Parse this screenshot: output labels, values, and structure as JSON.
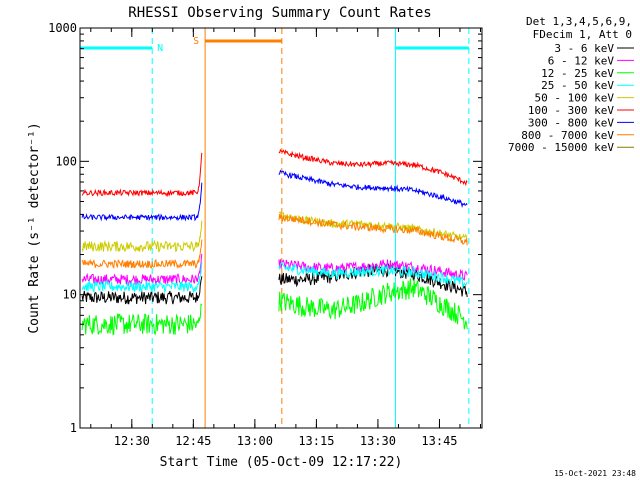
{
  "chart_data": {
    "type": "line",
    "title": "RHESSI Observing Summary Count Rates",
    "xlabel": "Start Time (05-Oct-09 12:17:22)",
    "ylabel": "Count Rate (s⁻¹ detector⁻¹)",
    "yscale": "log",
    "ylim": [
      1,
      1000
    ],
    "xlim_minutes_after_start": [
      0,
      98
    ],
    "y_ticks": [
      "1",
      "10",
      "100",
      "1000"
    ],
    "x_ticks": [
      {
        "label": "12:30",
        "minute": 12.63
      },
      {
        "label": "12:45",
        "minute": 27.63
      },
      {
        "label": "13:00",
        "minute": 42.63
      },
      {
        "label": "13:15",
        "minute": 57.63
      },
      {
        "label": "13:30",
        "minute": 72.63
      },
      {
        "label": "13:45",
        "minute": 87.63
      }
    ],
    "legend_header": [
      "Det 1,3,4,5,6,9,",
      "FDecim 1, Att 0"
    ],
    "legend_position": "right",
    "series": [
      {
        "name": "3 - 6 keV",
        "color": "#000000",
        "pre_level": 9.5,
        "pre_noise": 0.05,
        "post_level": 13,
        "post_noise": 0.05,
        "post_shape": [
          1.0,
          1.0,
          1.05,
          1.15,
          1.18,
          1.1,
          0.95,
          0.8
        ]
      },
      {
        "name": "6 - 12 keV",
        "color": "#ff00ff",
        "pre_level": 13,
        "pre_noise": 0.04,
        "post_level": 17,
        "post_noise": 0.04,
        "post_shape": [
          1.0,
          0.95,
          0.92,
          0.95,
          1.0,
          0.95,
          0.88,
          0.8
        ]
      },
      {
        "name": "12 - 25 keV",
        "color": "#00ff00",
        "pre_level": 6,
        "pre_noise": 0.08,
        "post_level": 9,
        "post_noise": 0.08,
        "post_shape": [
          1.0,
          0.9,
          0.85,
          0.95,
          1.15,
          1.25,
          0.95,
          0.7
        ]
      },
      {
        "name": "25 - 50 keV",
        "color": "#00ffff",
        "pre_level": 11.5,
        "pre_noise": 0.04,
        "post_level": 16,
        "post_noise": 0.04,
        "post_shape": [
          1.0,
          0.95,
          0.9,
          0.93,
          0.95,
          0.92,
          0.85,
          0.75
        ]
      },
      {
        "name": "50 - 100 keV",
        "color": "#cccc00",
        "pre_level": 23,
        "pre_noise": 0.04,
        "post_level": 40,
        "post_noise": 0.03,
        "post_shape": [
          1.0,
          0.9,
          0.85,
          0.85,
          0.82,
          0.78,
          0.72,
          0.65
        ]
      },
      {
        "name": "100 - 300 keV",
        "color": "#ff0000",
        "pre_level": 58,
        "pre_noise": 0.02,
        "post_level": 118,
        "post_noise": 0.02,
        "post_shape": [
          1.0,
          0.9,
          0.82,
          0.8,
          0.82,
          0.8,
          0.7,
          0.58
        ]
      },
      {
        "name": "300 - 800 keV",
        "color": "#0000ff",
        "pre_level": 38,
        "pre_noise": 0.02,
        "post_level": 82,
        "post_noise": 0.02,
        "post_shape": [
          1.0,
          0.9,
          0.82,
          0.78,
          0.77,
          0.74,
          0.66,
          0.57
        ]
      },
      {
        "name": "800 - 7000 keV",
        "color": "#ff7f00",
        "pre_level": 17,
        "pre_noise": 0.03,
        "post_level": 38,
        "post_noise": 0.03,
        "post_shape": [
          1.0,
          0.95,
          0.88,
          0.85,
          0.82,
          0.8,
          0.72,
          0.65
        ]
      },
      {
        "name": "7000 - 15000 keV",
        "color": "#808000",
        "pre_level": null,
        "pre_noise": 0,
        "post_level": null,
        "post_noise": 0,
        "post_shape": []
      }
    ],
    "flare_rise_minutes": [
      28.5,
      29.8
    ],
    "data_gap_minutes": [
      30.2,
      48.5
    ],
    "post_start_minute": 48.5,
    "data_end_minute": 94.5,
    "annotations": [
      {
        "label": "N",
        "color": "#00ffff",
        "type": "night",
        "start_minute": 0,
        "end_minute": 17.6
      },
      {
        "label": "",
        "color": "#00ffff",
        "type": "night",
        "start_minute": 76.9,
        "end_minute": 94.8
      },
      {
        "label": "S",
        "color": "#ff7f00",
        "type": "saa",
        "start_minute": 30.5,
        "end_minute": 49.2
      }
    ],
    "vertical_lines": [
      {
        "minute": 17.6,
        "color": "#00ffff",
        "style": "dashed"
      },
      {
        "minute": 76.9,
        "color": "#00ffff",
        "style": "solid"
      },
      {
        "minute": 94.8,
        "color": "#00ffff",
        "style": "dashed"
      },
      {
        "minute": 30.5,
        "color": "#ff7f00",
        "style": "solid"
      },
      {
        "minute": 49.2,
        "color": "#ff7f00",
        "style": "dashed"
      }
    ],
    "footer_date": "15-Oct-2021 23:48"
  }
}
